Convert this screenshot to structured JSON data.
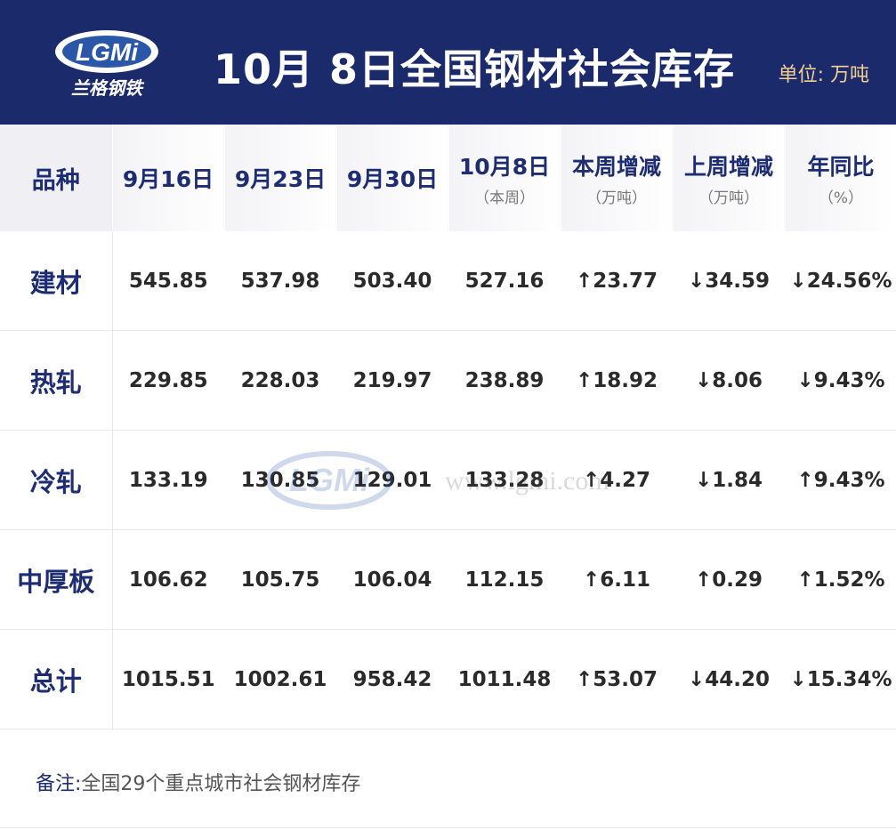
{
  "header": {
    "logo_text": "LGMi",
    "logo_subtext": "兰格钢铁",
    "title": "10月 8日全国钢材社会库存",
    "unit": "单位: 万吨"
  },
  "table": {
    "columns": [
      {
        "label": "品种",
        "sub": ""
      },
      {
        "label": "9月16日",
        "sub": ""
      },
      {
        "label": "9月23日",
        "sub": ""
      },
      {
        "label": "9月30日",
        "sub": ""
      },
      {
        "label": "10月8日",
        "sub": "（本周）"
      },
      {
        "label": "本周增减",
        "sub": "（万吨）"
      },
      {
        "label": "上周增减",
        "sub": "（万吨）"
      },
      {
        "label": "年同比",
        "sub": "（%）"
      }
    ],
    "rows": [
      {
        "name": "建材",
        "v1": "545.85",
        "v2": "537.98",
        "v3": "503.40",
        "v4": "527.16",
        "week": "↑23.77",
        "week_dir": "up",
        "last": "↓34.59",
        "last_dir": "down",
        "yoy": "↓24.56%",
        "yoy_dir": "down"
      },
      {
        "name": "热轧",
        "v1": "229.85",
        "v2": "228.03",
        "v3": "219.97",
        "v4": "238.89",
        "week": "↑18.92",
        "week_dir": "up",
        "last": "↓8.06",
        "last_dir": "down",
        "yoy": "↓9.43%",
        "yoy_dir": "down"
      },
      {
        "name": "冷轧",
        "v1": "133.19",
        "v2": "130.85",
        "v3": "129.01",
        "v4": "133.28",
        "week": "↑4.27",
        "week_dir": "up",
        "last": "↓1.84",
        "last_dir": "down",
        "yoy": "↑9.43%",
        "yoy_dir": "up"
      },
      {
        "name": "中厚板",
        "v1": "106.62",
        "v2": "105.75",
        "v3": "106.04",
        "v4": "112.15",
        "week": "↑6.11",
        "week_dir": "up",
        "last": "↑0.29",
        "last_dir": "up",
        "yoy": "↑1.52%",
        "yoy_dir": "up"
      },
      {
        "name": "总计",
        "v1": "1015.51",
        "v2": "1002.61",
        "v3": "958.42",
        "v4": "1011.48",
        "week": "↑53.07",
        "week_dir": "up",
        "last": "↓44.20",
        "last_dir": "down",
        "yoy": "↓15.34%",
        "yoy_dir": "down"
      }
    ]
  },
  "watermark": {
    "logo_text": "LGMi",
    "url_text": "www.lgmi.com"
  },
  "footnote": {
    "label": "备注:",
    "text": "全国29个重点城市社会钢材库存"
  },
  "colors": {
    "header_bg": "#1a2a6b",
    "up": "#ef5a3a",
    "down": "#27ae5a",
    "accent_text": "#1e2d72"
  }
}
